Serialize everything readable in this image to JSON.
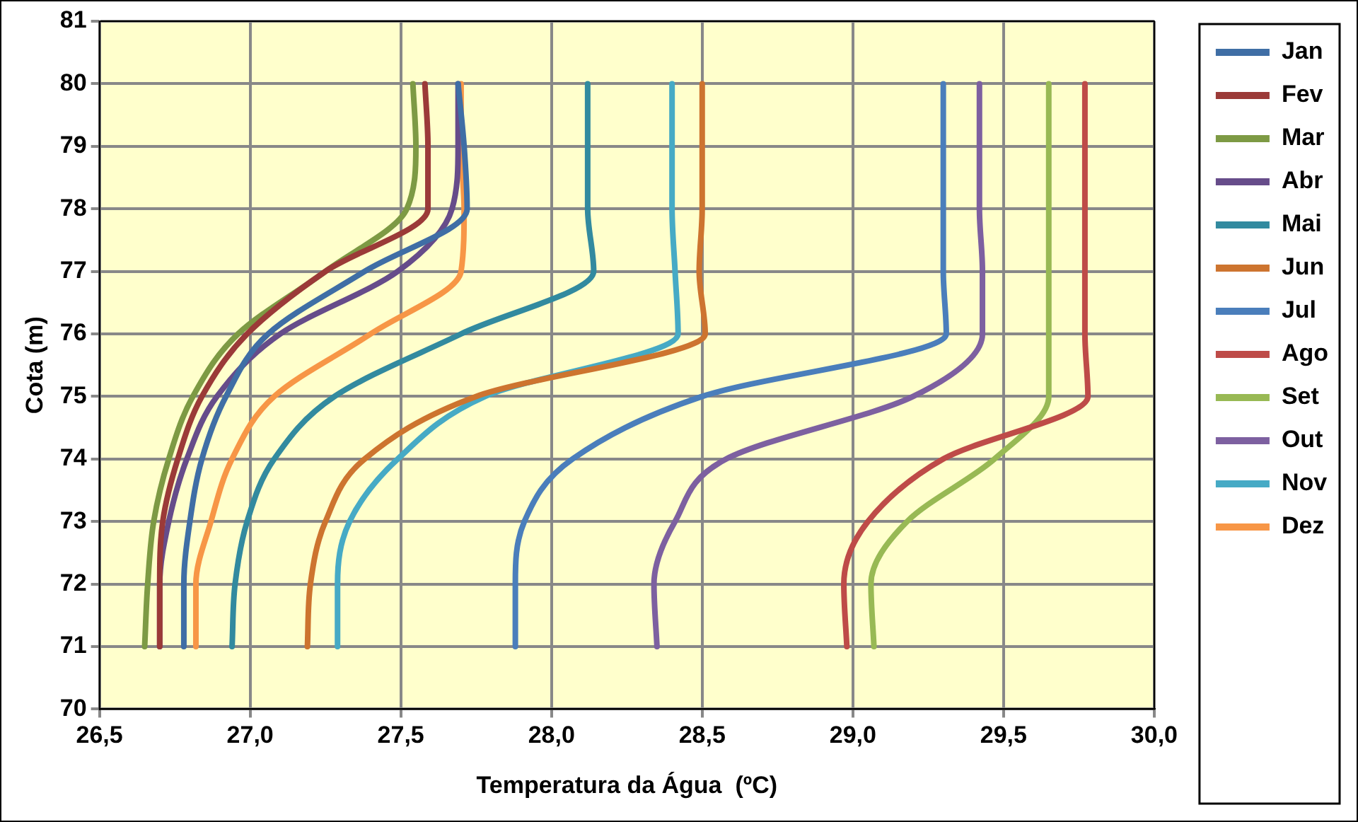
{
  "chart_data": {
    "type": "line",
    "xlabel": "Temperatura da Água  (ºC)",
    "ylabel": "Cota (m)",
    "xlim": [
      26.5,
      30
    ],
    "xticks": [
      {
        "value": 26.5,
        "label": "26,5"
      },
      {
        "value": 27,
        "label": "27,0"
      },
      {
        "value": 27.5,
        "label": "27,5"
      },
      {
        "value": 28,
        "label": "28,0"
      },
      {
        "value": 28.5,
        "label": "28,5"
      },
      {
        "value": 29,
        "label": "29,0"
      },
      {
        "value": 29.5,
        "label": "29,5"
      },
      {
        "value": 30,
        "label": "30,0"
      }
    ],
    "ylim": [
      70,
      81
    ],
    "yticks": [
      70,
      71,
      72,
      73,
      74,
      75,
      76,
      77,
      78,
      79,
      80,
      81
    ],
    "grid": true,
    "legend": "right",
    "series": [
      {
        "name": "Jan",
        "color": "#3f6ea5",
        "x": [
          26.78,
          26.78,
          26.8,
          26.84,
          26.92,
          27.06,
          27.38,
          27.72,
          27.71,
          27.69
        ],
        "values": [
          71,
          72,
          73,
          74,
          75,
          76,
          77,
          78,
          79,
          80
        ]
      },
      {
        "name": "Fev",
        "color": "#9b3a38",
        "x": [
          26.7,
          26.7,
          26.71,
          26.76,
          26.84,
          26.99,
          27.25,
          27.59,
          27.59,
          27.58
        ],
        "values": [
          71,
          72,
          73,
          74,
          75,
          76,
          77,
          78,
          79,
          80
        ]
      },
      {
        "name": "Mar",
        "color": "#7d9a44",
        "x": [
          26.65,
          26.66,
          26.68,
          26.73,
          26.81,
          26.96,
          27.25,
          27.52,
          27.55,
          27.54
        ],
        "values": [
          71,
          72,
          73,
          74,
          75,
          76,
          77,
          78,
          79,
          80
        ]
      },
      {
        "name": "Abr",
        "color": "#664c8a",
        "x": [
          26.7,
          26.7,
          26.73,
          26.79,
          26.89,
          27.1,
          27.49,
          27.67,
          27.69,
          27.69
        ],
        "values": [
          71,
          72,
          73,
          74,
          75,
          76,
          77,
          78,
          79,
          80
        ]
      },
      {
        "name": "Mai",
        "color": "#328a9f",
        "x": [
          26.94,
          26.95,
          26.99,
          27.08,
          27.28,
          27.7,
          28.14,
          28.12,
          28.12,
          28.12
        ],
        "values": [
          71,
          72,
          73,
          74,
          75,
          76,
          77,
          78,
          79,
          80
        ]
      },
      {
        "name": "Jun",
        "color": "#cd742f",
        "x": [
          27.19,
          27.2,
          27.25,
          27.38,
          27.75,
          28.51,
          28.49,
          28.5,
          28.5,
          28.5
        ],
        "values": [
          71,
          72,
          73,
          74,
          75,
          76,
          77,
          78,
          79,
          80
        ]
      },
      {
        "name": "Jul",
        "color": "#4a7ebb",
        "x": [
          27.88,
          27.88,
          27.91,
          28.07,
          28.5,
          29.31,
          29.3,
          29.3,
          29.3,
          29.3
        ],
        "values": [
          71,
          72,
          73,
          74,
          75,
          76,
          77,
          78,
          79,
          80
        ]
      },
      {
        "name": "Ago",
        "color": "#be4b48",
        "x": [
          28.98,
          28.97,
          29.05,
          29.3,
          29.78,
          29.77,
          29.77,
          29.77,
          29.77,
          29.77
        ],
        "values": [
          71,
          72,
          73,
          74,
          75,
          76,
          77,
          78,
          79,
          80
        ]
      },
      {
        "name": "Set",
        "color": "#98b954",
        "x": [
          29.07,
          29.06,
          29.18,
          29.47,
          29.65,
          29.65,
          29.65,
          29.65,
          29.65,
          29.65
        ],
        "values": [
          71,
          72,
          73,
          74,
          75,
          76,
          77,
          78,
          79,
          80
        ]
      },
      {
        "name": "Out",
        "color": "#7d60a0",
        "x": [
          28.35,
          28.34,
          28.41,
          28.58,
          29.2,
          29.43,
          29.43,
          29.42,
          29.42,
          29.42
        ],
        "values": [
          71,
          72,
          73,
          74,
          75,
          76,
          77,
          78,
          79,
          80
        ]
      },
      {
        "name": "Nov",
        "color": "#46aac5",
        "x": [
          27.29,
          27.29,
          27.33,
          27.49,
          27.78,
          28.42,
          28.41,
          28.4,
          28.4,
          28.4
        ],
        "values": [
          71,
          72,
          73,
          74,
          75,
          76,
          77,
          78,
          79,
          80
        ]
      },
      {
        "name": "Dez",
        "color": "#f79646",
        "x": [
          26.82,
          26.82,
          26.87,
          26.94,
          27.08,
          27.4,
          27.7,
          27.71,
          27.7,
          27.7
        ],
        "values": [
          71,
          72,
          73,
          74,
          75,
          76,
          77,
          78,
          79,
          80
        ]
      }
    ]
  }
}
